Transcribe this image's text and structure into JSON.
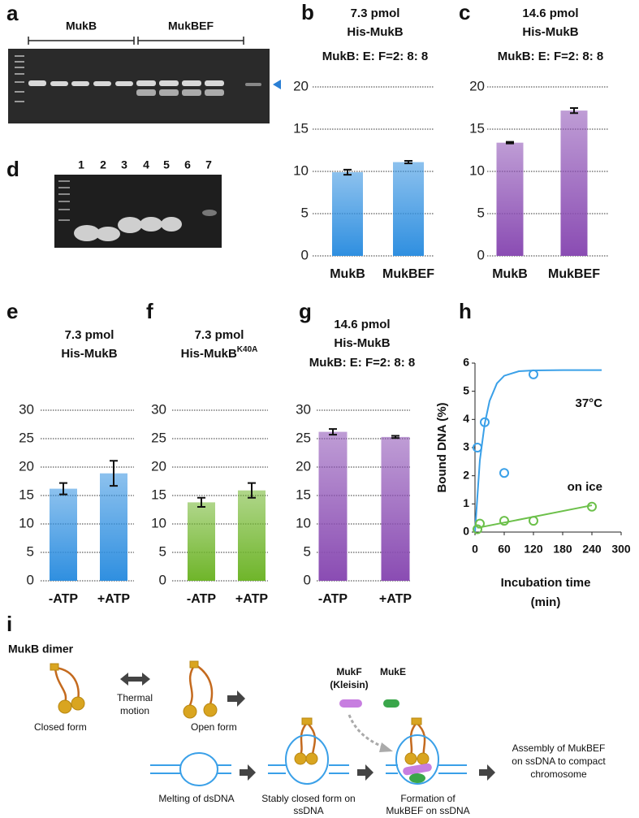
{
  "gel_a": {
    "panel": "a",
    "groups": [
      "MukB",
      "MukBEF"
    ]
  },
  "gel_d": {
    "panel": "d",
    "lanes": [
      "1",
      "2",
      "3",
      "4",
      "5",
      "6",
      "7"
    ]
  },
  "chart_data": [
    {
      "type": "bar",
      "panel": "b",
      "title": [
        "7.3 pmol",
        "His-MukB",
        "MukB: E: F=2: 8: 8"
      ],
      "categories": [
        "MukB",
        "MukBEF"
      ],
      "values": [
        9.9,
        11.1
      ],
      "errors": [
        0.3,
        0.15
      ],
      "color": "#2f8fe0",
      "ylim": [
        0,
        20
      ],
      "yticks": [
        0,
        5,
        10,
        15,
        20
      ],
      "grid": true
    },
    {
      "type": "bar",
      "panel": "c",
      "title": [
        "14.6 pmol",
        "His-MukB",
        "MukB: E: F=2: 8: 8"
      ],
      "categories": [
        "MukB",
        "MukBEF"
      ],
      "values": [
        13.4,
        17.2
      ],
      "errors": [
        0.1,
        0.3
      ],
      "color": "#8a4cb3",
      "ylim": [
        0,
        20
      ],
      "yticks": [
        0,
        5,
        10,
        15,
        20
      ],
      "grid": true
    },
    {
      "type": "bar",
      "panel": "e",
      "title": [
        "7.3 pmol",
        "His-MukB"
      ],
      "categories": [
        "-ATP",
        "+ATP"
      ],
      "values": [
        16.2,
        18.9
      ],
      "errors": [
        1.0,
        2.2
      ],
      "color": "#2f8fe0",
      "ylim": [
        0,
        30
      ],
      "yticks": [
        0,
        5,
        10,
        15,
        20,
        25,
        30
      ],
      "grid": true
    },
    {
      "type": "bar",
      "panel": "f",
      "title": [
        "7.3 pmol",
        "His-MukB"
      ],
      "title_superscript": "K40A",
      "categories": [
        "-ATP",
        "+ATP"
      ],
      "values": [
        13.8,
        15.9
      ],
      "errors": [
        0.8,
        1.3
      ],
      "color": "#6fb52a",
      "ylim": [
        0,
        30
      ],
      "yticks": [
        0,
        5,
        10,
        15,
        20,
        25,
        30
      ],
      "grid": true
    },
    {
      "type": "bar",
      "panel": "g",
      "title": [
        "14.6 pmol",
        "His-MukB",
        "MukB: E: F=2: 8: 8"
      ],
      "categories": [
        "-ATP",
        "+ATP"
      ],
      "values": [
        26.2,
        25.3
      ],
      "errors": [
        0.5,
        0.2
      ],
      "color": "#8a4cb3",
      "ylim": [
        0,
        30
      ],
      "yticks": [
        0,
        5,
        10,
        15,
        20,
        25,
        30
      ],
      "grid": true
    },
    {
      "type": "scatter",
      "panel": "h",
      "xlabel": [
        "Incubation time",
        "(min)"
      ],
      "ylabel": "Bound DNA (%)",
      "xlim": [
        0,
        300
      ],
      "xticks": [
        0,
        60,
        120,
        180,
        240,
        300
      ],
      "ylim": [
        0,
        6
      ],
      "yticks": [
        0,
        1,
        2,
        3,
        4,
        5,
        6
      ],
      "series": [
        {
          "name": "37°C",
          "color": "#3aa0e8",
          "x": [
            5,
            20,
            60,
            120
          ],
          "values": [
            3.0,
            3.9,
            2.1,
            5.6
          ],
          "fit_x": [
            0,
            10,
            20,
            30,
            45,
            60,
            90,
            120,
            180,
            240,
            260
          ],
          "fit_y": [
            0,
            2.55,
            3.85,
            4.66,
            5.28,
            5.55,
            5.71,
            5.74,
            5.75,
            5.75,
            5.75
          ]
        },
        {
          "name": "on ice",
          "color": "#6cc04a",
          "x": [
            5,
            10,
            60,
            120,
            240
          ],
          "values": [
            0.1,
            0.3,
            0.4,
            0.4,
            0.9
          ],
          "fit_x": [
            5,
            240
          ],
          "fit_y": [
            0.15,
            0.95
          ]
        }
      ]
    }
  ],
  "diagram": {
    "panel": "i",
    "title": "MukB dimer",
    "closed": "Closed  form",
    "thermal": [
      "Thermal",
      "motion"
    ],
    "open": "Open form",
    "mukf": [
      "MukF",
      "(Kleisin)"
    ],
    "muke": "MukE",
    "step1": "Melting of dsDNA",
    "step2": [
      "Stably closed form on",
      "ssDNA"
    ],
    "step3": [
      "Formation of",
      "MukBEF on ssDNA"
    ],
    "step4": [
      "Assembly of MukBEF",
      "on ssDNA to compact",
      "chromosome"
    ]
  }
}
